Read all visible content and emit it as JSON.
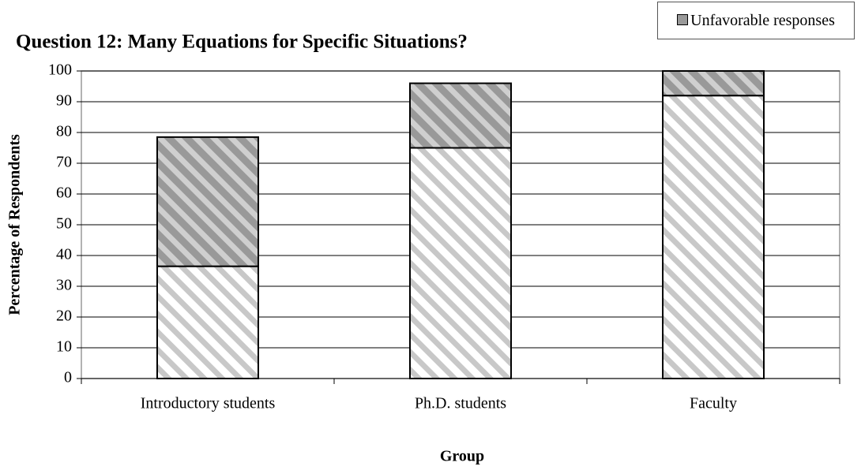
{
  "chart_data": {
    "type": "stacked-bar",
    "title": "Question 12: Many Equations for Specific Situations?",
    "xlabel": "Group",
    "ylabel": "Percentage of Respondents",
    "categories": [
      "Introductory students",
      "Ph.D. students",
      "Faculty"
    ],
    "series": [
      {
        "color": "#c8c8c8",
        "values": [
          36.5,
          75,
          92
        ]
      },
      {
        "name": "Unfavorable responses",
        "color": "#999999",
        "values": [
          42,
          21,
          8
        ]
      }
    ],
    "ylim": [
      0,
      100
    ],
    "yticks": [
      0,
      10,
      20,
      30,
      40,
      50,
      60,
      70,
      80,
      90,
      100
    ],
    "grid": true,
    "legend": "top-right"
  }
}
